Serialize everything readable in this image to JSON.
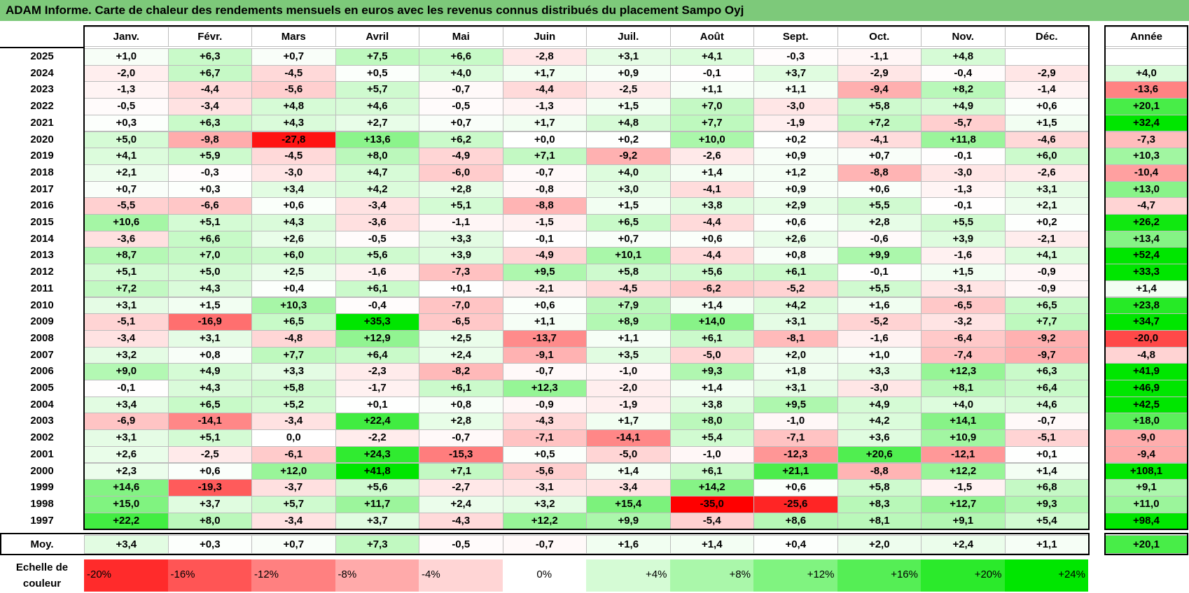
{
  "title": "ADAM Informe. Carte de chaleur des rendements mensuels en euros avec les revenus connus distribués du placement Sampo Oyj",
  "months": [
    "Janv.",
    "Févr.",
    "Mars",
    "Avril",
    "Mai",
    "Juin",
    "Juil.",
    "Août",
    "Sept.",
    "Oct.",
    "Nov.",
    "Déc."
  ],
  "year_header": "Année",
  "avg_label": "Moy.",
  "scale_label_line1": "Echelle de",
  "scale_label_line2": "couleur",
  "colors": {
    "negative": "#ff0000",
    "neutral": "#ffffff",
    "positive": "#00e600",
    "title_bar": "#7dc97a"
  },
  "chart_data": {
    "type": "heatmap",
    "title": "ADAM Informe. Carte de chaleur des rendements mensuels en euros avec les revenus connus distribués du placement Sampo Oyj",
    "columns": [
      "Janv.",
      "Févr.",
      "Mars",
      "Avril",
      "Mai",
      "Juin",
      "Juil.",
      "Août",
      "Sept.",
      "Oct.",
      "Nov.",
      "Déc."
    ],
    "rows": [
      {
        "year": "2025",
        "months": [
          "+1,0",
          "+6,3",
          "+0,7",
          "+7,5",
          "+6,6",
          "-2,8",
          "+3,1",
          "+4,1",
          "-0,3",
          "-1,1",
          "+4,8",
          ""
        ],
        "annual": ""
      },
      {
        "year": "2024",
        "months": [
          "-2,0",
          "+6,7",
          "-4,5",
          "+0,5",
          "+4,0",
          "+1,7",
          "+0,9",
          "-0,1",
          "+3,7",
          "-2,9",
          "-0,4",
          "-2,9"
        ],
        "annual": "+4,0"
      },
      {
        "year": "2023",
        "months": [
          "-1,3",
          "-4,4",
          "-5,6",
          "+5,7",
          "-0,7",
          "-4,4",
          "-2,5",
          "+1,1",
          "+1,1",
          "-9,4",
          "+8,2",
          "-1,4"
        ],
        "annual": "-13,6"
      },
      {
        "year": "2022",
        "months": [
          "-0,5",
          "-3,4",
          "+4,8",
          "+4,6",
          "-0,5",
          "-1,3",
          "+1,5",
          "+7,0",
          "-3,0",
          "+5,8",
          "+4,9",
          "+0,6"
        ],
        "annual": "+20,1"
      },
      {
        "year": "2021",
        "months": [
          "+0,3",
          "+6,3",
          "+4,3",
          "+2,7",
          "+0,7",
          "+1,7",
          "+4,8",
          "+7,7",
          "-1,9",
          "+7,2",
          "-5,7",
          "+1,5"
        ],
        "annual": "+32,4"
      },
      {
        "year": "2020",
        "months": [
          "+5,0",
          "-9,8",
          "-27,8",
          "+13,6",
          "+6,2",
          "+0,0",
          "+0,2",
          "+10,0",
          "+0,2",
          "-4,1",
          "+11,8",
          "-4,6"
        ],
        "annual": "-7,3"
      },
      {
        "year": "2019",
        "months": [
          "+4,1",
          "+5,9",
          "-4,5",
          "+8,0",
          "-4,9",
          "+7,1",
          "-9,2",
          "-2,6",
          "+0,9",
          "+0,7",
          "-0,1",
          "+6,0"
        ],
        "annual": "+10,3"
      },
      {
        "year": "2018",
        "months": [
          "+2,1",
          "-0,3",
          "-3,0",
          "+4,7",
          "-6,0",
          "-0,7",
          "+4,0",
          "+1,4",
          "+1,2",
          "-8,8",
          "-3,0",
          "-2,6"
        ],
        "annual": "-10,4"
      },
      {
        "year": "2017",
        "months": [
          "+0,7",
          "+0,3",
          "+3,4",
          "+4,2",
          "+2,8",
          "-0,8",
          "+3,0",
          "-4,1",
          "+0,9",
          "+0,6",
          "-1,3",
          "+3,1"
        ],
        "annual": "+13,0"
      },
      {
        "year": "2016",
        "months": [
          "-5,5",
          "-6,6",
          "+0,6",
          "-3,4",
          "+5,1",
          "-8,8",
          "+1,5",
          "+3,8",
          "+2,9",
          "+5,5",
          "-0,1",
          "+2,1"
        ],
        "annual": "-4,7"
      },
      {
        "year": "2015",
        "months": [
          "+10,6",
          "+5,1",
          "+4,3",
          "-3,6",
          "-1,1",
          "-1,5",
          "+6,5",
          "-4,4",
          "+0,6",
          "+2,8",
          "+5,5",
          "+0,2"
        ],
        "annual": "+26,2"
      },
      {
        "year": "2014",
        "months": [
          "-3,6",
          "+6,6",
          "+2,6",
          "-0,5",
          "+3,3",
          "-0,1",
          "+0,7",
          "+0,6",
          "+2,6",
          "-0,6",
          "+3,9",
          "-2,1"
        ],
        "annual": "+13,4"
      },
      {
        "year": "2013",
        "months": [
          "+8,7",
          "+7,0",
          "+6,0",
          "+5,6",
          "+3,9",
          "-4,9",
          "+10,1",
          "-4,4",
          "+0,8",
          "+9,9",
          "-1,6",
          "+4,1"
        ],
        "annual": "+52,4"
      },
      {
        "year": "2012",
        "months": [
          "+5,1",
          "+5,0",
          "+2,5",
          "-1,6",
          "-7,3",
          "+9,5",
          "+5,8",
          "+5,6",
          "+6,1",
          "-0,1",
          "+1,5",
          "-0,9"
        ],
        "annual": "+33,3"
      },
      {
        "year": "2011",
        "months": [
          "+7,2",
          "+4,3",
          "+0,4",
          "+6,1",
          "+0,1",
          "-2,1",
          "-4,5",
          "-6,2",
          "-5,2",
          "+5,5",
          "-3,1",
          "-0,9"
        ],
        "annual": "+1,4"
      },
      {
        "year": "2010",
        "months": [
          "+3,1",
          "+1,5",
          "+10,3",
          "-0,4",
          "-7,0",
          "+0,6",
          "+7,9",
          "+1,4",
          "+4,2",
          "+1,6",
          "-6,5",
          "+6,5"
        ],
        "annual": "+23,8"
      },
      {
        "year": "2009",
        "months": [
          "-5,1",
          "-16,9",
          "+6,5",
          "+35,3",
          "-6,5",
          "+1,1",
          "+8,9",
          "+14,0",
          "+3,1",
          "-5,2",
          "-3,2",
          "+7,7"
        ],
        "annual": "+34,7"
      },
      {
        "year": "2008",
        "months": [
          "-3,4",
          "+3,1",
          "-4,8",
          "+12,9",
          "+2,5",
          "-13,7",
          "+1,1",
          "+6,1",
          "-8,1",
          "-1,6",
          "-6,4",
          "-9,2"
        ],
        "annual": "-20,0"
      },
      {
        "year": "2007",
        "months": [
          "+3,2",
          "+0,8",
          "+7,7",
          "+6,4",
          "+2,4",
          "-9,1",
          "+3,5",
          "-5,0",
          "+2,0",
          "+1,0",
          "-7,4",
          "-9,7"
        ],
        "annual": "-4,8"
      },
      {
        "year": "2006",
        "months": [
          "+9,0",
          "+4,9",
          "+3,3",
          "-2,3",
          "-8,2",
          "-0,7",
          "-1,0",
          "+9,3",
          "+1,8",
          "+3,3",
          "+12,3",
          "+6,3"
        ],
        "annual": "+41,9"
      },
      {
        "year": "2005",
        "months": [
          "-0,1",
          "+4,3",
          "+5,8",
          "-1,7",
          "+6,1",
          "+12,3",
          "-2,0",
          "+1,4",
          "+3,1",
          "-3,0",
          "+8,1",
          "+6,4"
        ],
        "annual": "+46,9"
      },
      {
        "year": "2004",
        "months": [
          "+3,4",
          "+6,5",
          "+5,2",
          "+0,1",
          "+0,8",
          "-0,9",
          "-1,9",
          "+3,8",
          "+9,5",
          "+4,9",
          "+4,0",
          "+4,6"
        ],
        "annual": "+42,5"
      },
      {
        "year": "2003",
        "months": [
          "-6,9",
          "-14,1",
          "-3,4",
          "+22,4",
          "+2,8",
          "-4,3",
          "+1,7",
          "+8,0",
          "-1,0",
          "+4,2",
          "+14,1",
          "-0,7"
        ],
        "annual": "+18,0"
      },
      {
        "year": "2002",
        "months": [
          "+3,1",
          "+5,1",
          "0,0",
          "-2,2",
          "-0,7",
          "-7,1",
          "-14,1",
          "+5,4",
          "-7,1",
          "+3,6",
          "+10,9",
          "-5,1"
        ],
        "annual": "-9,0"
      },
      {
        "year": "2001",
        "months": [
          "+2,6",
          "-2,5",
          "-6,1",
          "+24,3",
          "-15,3",
          "+0,5",
          "-5,0",
          "-1,0",
          "-12,3",
          "+20,6",
          "-12,1",
          "+0,1"
        ],
        "annual": "-9,4"
      },
      {
        "year": "2000",
        "months": [
          "+2,3",
          "+0,6",
          "+12,0",
          "+41,8",
          "+7,1",
          "-5,6",
          "+1,4",
          "+6,1",
          "+21,1",
          "-8,8",
          "+12,2",
          "+1,4"
        ],
        "annual": "+108,1"
      },
      {
        "year": "1999",
        "months": [
          "+14,6",
          "-19,3",
          "-3,7",
          "+5,6",
          "-2,7",
          "-3,1",
          "-3,4",
          "+14,2",
          "+0,6",
          "+5,8",
          "-1,5",
          "+6,8"
        ],
        "annual": "+9,1"
      },
      {
        "year": "1998",
        "months": [
          "+15,0",
          "+3,7",
          "+5,7",
          "+11,7",
          "+2,4",
          "+3,2",
          "+15,4",
          "-35,0",
          "-25,6",
          "+8,3",
          "+12,7",
          "+9,3"
        ],
        "annual": "+11,0"
      },
      {
        "year": "1997",
        "months": [
          "+22,2",
          "+8,0",
          "-3,4",
          "+3,7",
          "-4,3",
          "+12,2",
          "+9,9",
          "-5,4",
          "+8,6",
          "+8,1",
          "+9,1",
          "+5,4"
        ],
        "annual": "+98,4"
      }
    ],
    "average": {
      "months": [
        "+3,4",
        "+0,3",
        "+0,7",
        "+7,3",
        "-0,5",
        "-0,7",
        "+1,6",
        "+1,4",
        "+0,4",
        "+2,0",
        "+2,4",
        "+1,1"
      ],
      "annual": "+20,1"
    },
    "color_scale": [
      {
        "label": "-20%",
        "value": -20
      },
      {
        "label": "-16%",
        "value": -16
      },
      {
        "label": "-12%",
        "value": -12
      },
      {
        "label": "-8%",
        "value": -8
      },
      {
        "label": "-4%",
        "value": -4
      },
      {
        "label": "0%",
        "value": 0
      },
      {
        "label": "+4%",
        "value": 4
      },
      {
        "label": "+8%",
        "value": 8
      },
      {
        "label": "+12%",
        "value": 12
      },
      {
        "label": "+16%",
        "value": 16
      },
      {
        "label": "+20%",
        "value": 20
      },
      {
        "label": "+24%",
        "value": 24
      }
    ]
  }
}
